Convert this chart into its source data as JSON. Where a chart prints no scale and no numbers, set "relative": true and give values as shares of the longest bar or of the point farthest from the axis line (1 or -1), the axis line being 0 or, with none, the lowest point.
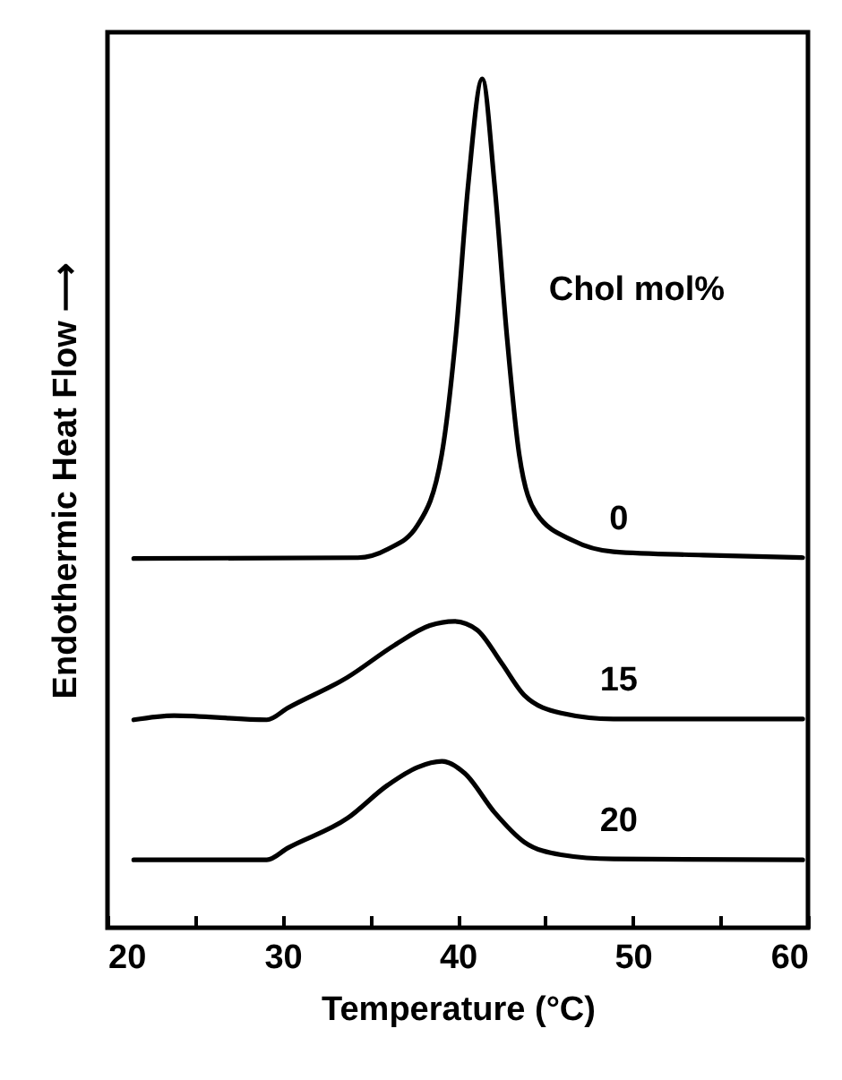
{
  "chart_data": {
    "type": "line",
    "relative": true,
    "xlabel": "Temperature (°C)",
    "ylabel": "Endothermic Heat Flow ⟶",
    "legend_title": "Chol mol%",
    "xlim": [
      20,
      60
    ],
    "xticks": [
      20,
      {
        "value": 25,
        "label": null
      },
      30,
      {
        "value": 35,
        "label": null
      },
      40,
      {
        "value": 45,
        "label": null
      },
      50,
      {
        "value": 55,
        "label": null
      },
      60
    ],
    "line_style": "solid",
    "series": [
      {
        "name": "0",
        "color": "#000000",
        "x": [
          21.5,
          34.3,
          36.0,
          37.7,
          39.1,
          39.9,
          40.6,
          41.4,
          42.1,
          42.8,
          43.5,
          44.5,
          46.6,
          48.9,
          54.0,
          59.7
        ],
        "values": [
          0.435,
          0.436,
          0.446,
          0.474,
          0.559,
          0.699,
          0.876,
          1,
          0.876,
          0.699,
          0.559,
          0.488,
          0.456,
          0.443,
          0.439,
          0.436
        ]
      },
      {
        "name": "15",
        "color": "#000000",
        "x": [
          21.5,
          23.8,
          29.1,
          30.3,
          33.7,
          36.4,
          38.4,
          39.8,
          41.1,
          42.5,
          43.8,
          45.9,
          48.9,
          59.7
        ],
        "values": [
          0.245,
          0.25,
          0.245,
          0.259,
          0.295,
          0.333,
          0.356,
          0.361,
          0.351,
          0.312,
          0.274,
          0.253,
          0.246,
          0.246
        ]
      },
      {
        "name": "20",
        "color": "#000000",
        "x": [
          21.5,
          29.1,
          30.3,
          33.7,
          36.0,
          37.7,
          39.1,
          40.4,
          42.1,
          43.8,
          45.9,
          48.9,
          59.7
        ],
        "values": [
          0.08,
          0.08,
          0.094,
          0.129,
          0.168,
          0.189,
          0.196,
          0.182,
          0.136,
          0.101,
          0.086,
          0.081,
          0.08
        ]
      }
    ]
  }
}
